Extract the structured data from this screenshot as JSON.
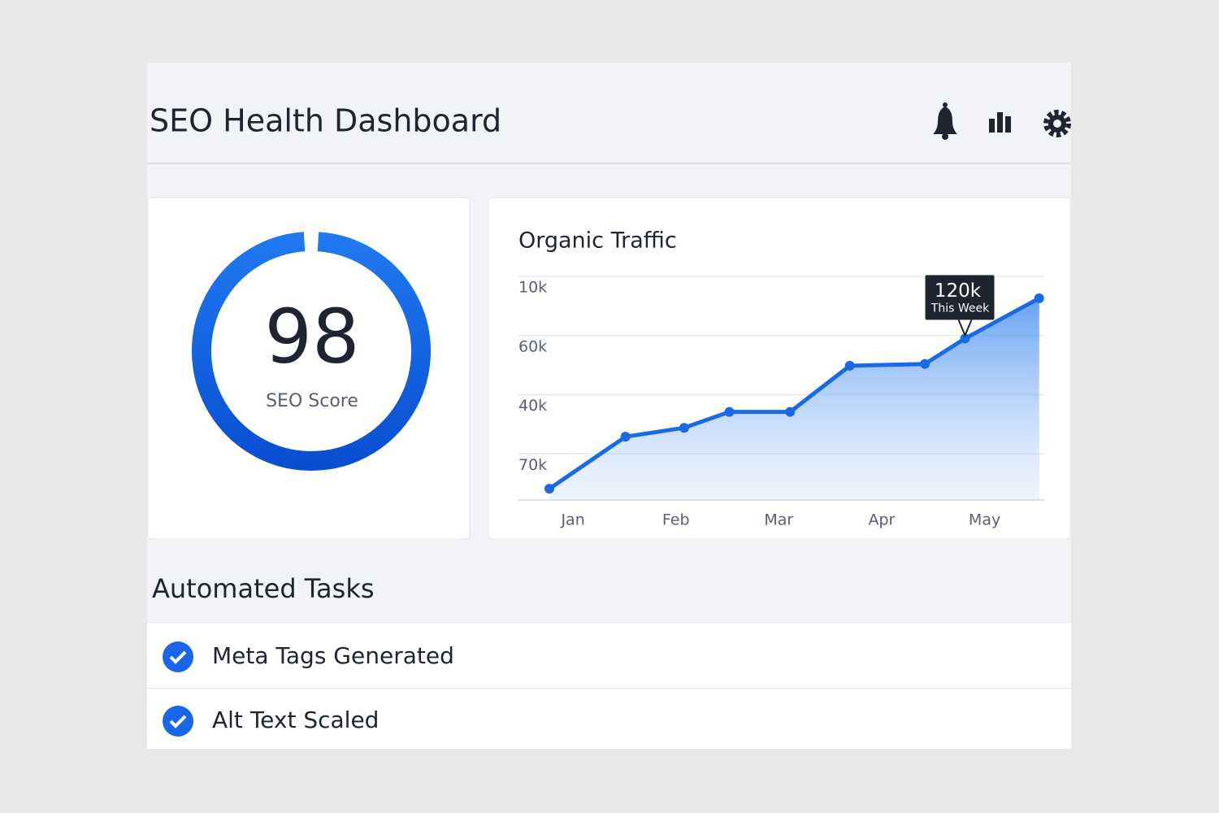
{
  "header": {
    "title": "SEO Health Dashboard"
  },
  "score_card": {
    "score": 98,
    "max": 100,
    "label": "SEO Score"
  },
  "chart_data": {
    "type": "line",
    "title": "Organic Traffic",
    "x": [
      -0.23,
      0.51,
      1.08,
      1.52,
      2.11,
      2.69,
      3.42,
      3.81,
      4.53
    ],
    "series": [
      {
        "color": "#1a6ae8",
        "values": [
          0.41,
          1.29,
          1.44,
          1.71,
          1.71,
          2.49,
          2.52,
          2.95,
          3.63
        ]
      }
    ],
    "xlim": [
      -0.53,
      4.58
    ],
    "xticks": [
      {
        "value": 0,
        "label": "Jan"
      },
      {
        "value": 1,
        "label": "Feb"
      },
      {
        "value": 2,
        "label": "Mar"
      },
      {
        "value": 3,
        "label": "Apr"
      },
      {
        "value": 4,
        "label": "May"
      }
    ],
    "ylim": [
      0.22,
      4
    ],
    "yticks": [
      {
        "value": 1,
        "label": "70k"
      },
      {
        "value": 2,
        "label": "40k"
      },
      {
        "value": 3,
        "label": "60k"
      },
      {
        "value": 4,
        "label": "10k"
      }
    ],
    "grid": true,
    "annotation": {
      "point": 7,
      "text": "120k",
      "subtext": "This Week"
    }
  },
  "tasks": {
    "title": "Automated Tasks",
    "items": [
      {
        "label": "Meta Tags Generated"
      },
      {
        "label": "Alt Text Scaled"
      }
    ]
  }
}
